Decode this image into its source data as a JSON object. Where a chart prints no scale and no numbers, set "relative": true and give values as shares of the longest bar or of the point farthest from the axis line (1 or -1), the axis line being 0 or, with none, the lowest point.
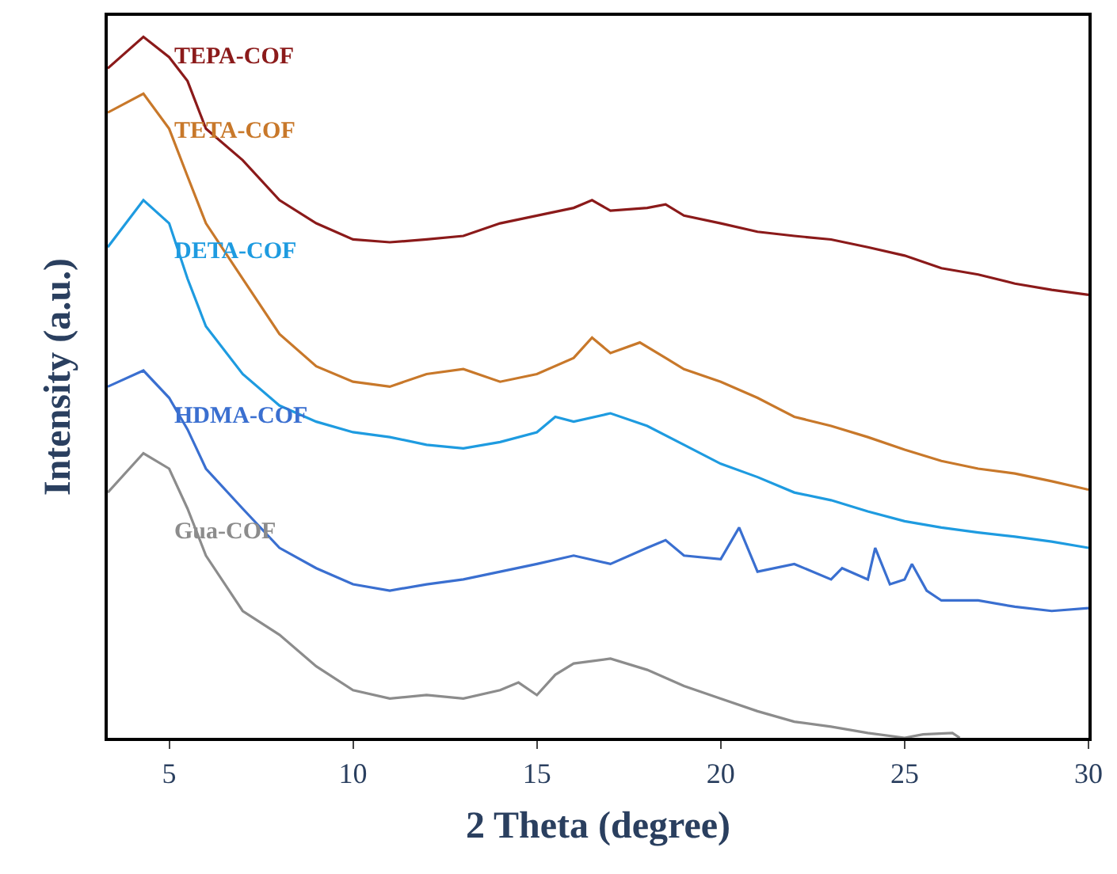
{
  "chart_data": {
    "type": "line",
    "relative": true,
    "xlabel": "2 Theta (degree)",
    "ylabel": "Intensity (a.u.)",
    "xlim": [
      3.33,
      30
    ],
    "xticks": [
      5,
      10,
      15,
      20,
      25,
      30
    ],
    "legend": false,
    "marker": "none",
    "line_style": "solid",
    "series": [
      {
        "name": "TEPA-COF",
        "color": "#8b1a1a",
        "x": [
          3.33,
          4.3,
          5,
          5.5,
          6,
          7,
          8,
          9,
          10,
          11,
          12,
          13,
          14,
          15,
          16,
          16.5,
          17,
          18,
          18.5,
          19,
          20,
          21,
          22,
          23,
          24,
          25,
          26,
          27,
          28,
          29,
          30
        ],
        "values": [
          0.955,
          1.0,
          0.971,
          0.937,
          0.869,
          0.824,
          0.767,
          0.734,
          0.711,
          0.707,
          0.711,
          0.716,
          0.734,
          0.745,
          0.756,
          0.767,
          0.752,
          0.756,
          0.761,
          0.745,
          0.734,
          0.722,
          0.716,
          0.711,
          0.7,
          0.688,
          0.67,
          0.661,
          0.648,
          0.639,
          0.632
        ]
      },
      {
        "name": "TETA-COF",
        "color": "#c8782a",
        "x": [
          3.33,
          4.3,
          5,
          5.5,
          6,
          7,
          8,
          9,
          10,
          11,
          12,
          13,
          14,
          15,
          16,
          16.5,
          17,
          17.8,
          18.5,
          19,
          20,
          21,
          22,
          23,
          24,
          25,
          26,
          27,
          28,
          29,
          30
        ],
        "values": [
          0.892,
          0.919,
          0.869,
          0.801,
          0.734,
          0.655,
          0.576,
          0.53,
          0.508,
          0.501,
          0.519,
          0.526,
          0.508,
          0.519,
          0.542,
          0.571,
          0.549,
          0.564,
          0.542,
          0.526,
          0.508,
          0.485,
          0.458,
          0.445,
          0.429,
          0.411,
          0.395,
          0.384,
          0.377,
          0.366,
          0.354
        ]
      },
      {
        "name": "DETA-COF",
        "color": "#1e9be0",
        "x": [
          3.33,
          4.3,
          5,
          5.5,
          6,
          7,
          8,
          9,
          10,
          11,
          12,
          13,
          14,
          15,
          15.5,
          16,
          17,
          18,
          19,
          20,
          21,
          22,
          23,
          24,
          25,
          26,
          27,
          28,
          29,
          30
        ],
        "values": [
          0.7,
          0.767,
          0.734,
          0.655,
          0.587,
          0.519,
          0.474,
          0.451,
          0.436,
          0.429,
          0.418,
          0.413,
          0.422,
          0.436,
          0.458,
          0.451,
          0.463,
          0.445,
          0.418,
          0.391,
          0.372,
          0.35,
          0.339,
          0.323,
          0.309,
          0.3,
          0.293,
          0.287,
          0.28,
          0.271
        ]
      },
      {
        "name": "HDMA-COF",
        "color": "#3a6fd0",
        "x": [
          3.33,
          4.3,
          5,
          5.5,
          6,
          7,
          8,
          9,
          10,
          11,
          12,
          13,
          14,
          15,
          16,
          17,
          18,
          18.5,
          19,
          20,
          20.5,
          21,
          22,
          23,
          23.3,
          24,
          24.2,
          24.6,
          25,
          25.2,
          25.6,
          26,
          27,
          28,
          29,
          30
        ],
        "values": [
          0.501,
          0.524,
          0.485,
          0.44,
          0.384,
          0.327,
          0.271,
          0.242,
          0.219,
          0.21,
          0.219,
          0.226,
          0.237,
          0.248,
          0.26,
          0.248,
          0.271,
          0.282,
          0.26,
          0.255,
          0.3,
          0.237,
          0.248,
          0.226,
          0.242,
          0.226,
          0.271,
          0.219,
          0.226,
          0.248,
          0.21,
          0.196,
          0.196,
          0.187,
          0.181,
          0.185
        ]
      },
      {
        "name": "Gua-COF",
        "color": "#8c8c8c",
        "x": [
          3.33,
          4.3,
          5,
          5.5,
          6,
          7,
          8,
          9,
          10,
          11,
          12,
          13,
          14,
          14.5,
          15,
          15.5,
          16,
          17,
          18,
          19,
          20,
          21,
          22,
          23,
          24,
          25,
          25.5,
          26.3,
          26.5
        ],
        "values": [
          0.35,
          0.406,
          0.384,
          0.327,
          0.26,
          0.181,
          0.147,
          0.102,
          0.068,
          0.056,
          0.061,
          0.056,
          0.068,
          0.079,
          0.061,
          0.09,
          0.106,
          0.113,
          0.097,
          0.074,
          0.056,
          0.038,
          0.023,
          0.016,
          0.007,
          0,
          0.005,
          0.007,
          0
        ]
      }
    ]
  }
}
